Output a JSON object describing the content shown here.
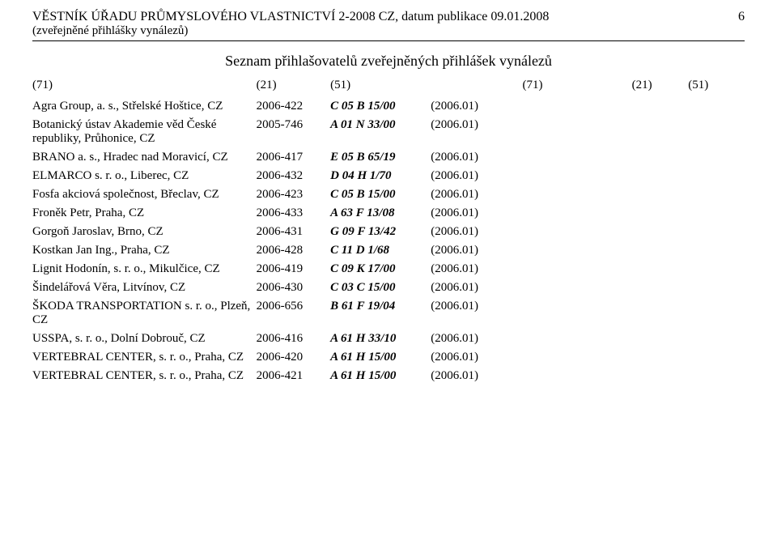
{
  "header": {
    "journal": "VĚSTNÍK ÚŘADU PRŮMYSLOVÉHO VLASTNICTVÍ 2-2008 CZ, datum publikace 09.01.2008",
    "page_number": "6",
    "subtitle": "(zveřejněné přihlášky vynálezů)"
  },
  "section_title": "Seznam přihlašovatelů zveřejněných přihlášek vynálezů",
  "columns": {
    "left": {
      "c71": "(71)",
      "c21": "(21)",
      "c51": "(51)"
    },
    "right": {
      "c71": "(71)",
      "c21": "(21)",
      "c51": "(51)"
    }
  },
  "rows": [
    {
      "applicant": "Agra Group, a. s., Střelské Hoštice, CZ",
      "appno": "2006-422",
      "cls_l": "C",
      "cls_i": "05 B 15/00",
      "pub": "(2006.01)"
    },
    {
      "applicant": "Botanický ústav Akademie věd České republiky, Průhonice, CZ",
      "appno": "2005-746",
      "cls_l": "A",
      "cls_i": "01 N 33/00",
      "pub": "(2006.01)"
    },
    {
      "applicant": "BRANO a. s., Hradec nad Moravicí, CZ",
      "appno": "2006-417",
      "cls_l": "E",
      "cls_i": "05 B 65/19",
      "pub": "(2006.01)"
    },
    {
      "applicant": "ELMARCO s. r. o., Liberec, CZ",
      "appno": "2006-432",
      "cls_l": "D",
      "cls_i": "04 H 1/70",
      "pub": "(2006.01)"
    },
    {
      "applicant": "Fosfa akciová společnost, Břeclav, CZ",
      "appno": "2006-423",
      "cls_l": "C",
      "cls_i": "05 B 15/00",
      "pub": "(2006.01)"
    },
    {
      "applicant": "Froněk Petr, Praha, CZ",
      "appno": "2006-433",
      "cls_l": "A",
      "cls_i": "63 F 13/08",
      "pub": "(2006.01)"
    },
    {
      "applicant": "Gorgoň Jaroslav, Brno, CZ",
      "appno": "2006-431",
      "cls_l": "G",
      "cls_i": "09 F 13/42",
      "pub": "(2006.01)"
    },
    {
      "applicant": "Kostkan Jan Ing., Praha, CZ",
      "appno": "2006-428",
      "cls_l": "C",
      "cls_i": "11 D 1/68",
      "pub": "(2006.01)"
    },
    {
      "applicant": "Lignit Hodonín, s. r. o., Mikulčice, CZ",
      "appno": "2006-419",
      "cls_l": "C",
      "cls_i": "09 K 17/00",
      "pub": "(2006.01)"
    },
    {
      "applicant": "Šindelářová Věra, Litvínov, CZ",
      "appno": "2006-430",
      "cls_l": "C",
      "cls_i": "03 C 15/00",
      "pub": "(2006.01)"
    },
    {
      "applicant": "ŠKODA TRANSPORTATION s. r. o., Plzeň, CZ",
      "appno": "2006-656",
      "cls_l": "B",
      "cls_i": "61 F 19/04",
      "pub": "(2006.01)"
    },
    {
      "applicant": "USSPA, s. r. o., Dolní Dobrouč, CZ",
      "appno": "2006-416",
      "cls_l": "A",
      "cls_i": "61 H 33/10",
      "pub": "(2006.01)"
    },
    {
      "applicant": "VERTEBRAL CENTER, s. r. o., Praha, CZ",
      "appno": "2006-420",
      "cls_l": "A",
      "cls_i": "61 H 15/00",
      "pub": "(2006.01)"
    },
    {
      "applicant": "VERTEBRAL CENTER, s. r. o., Praha, CZ",
      "appno": "2006-421",
      "cls_l": "A",
      "cls_i": "61 H 15/00",
      "pub": "(2006.01)"
    }
  ]
}
